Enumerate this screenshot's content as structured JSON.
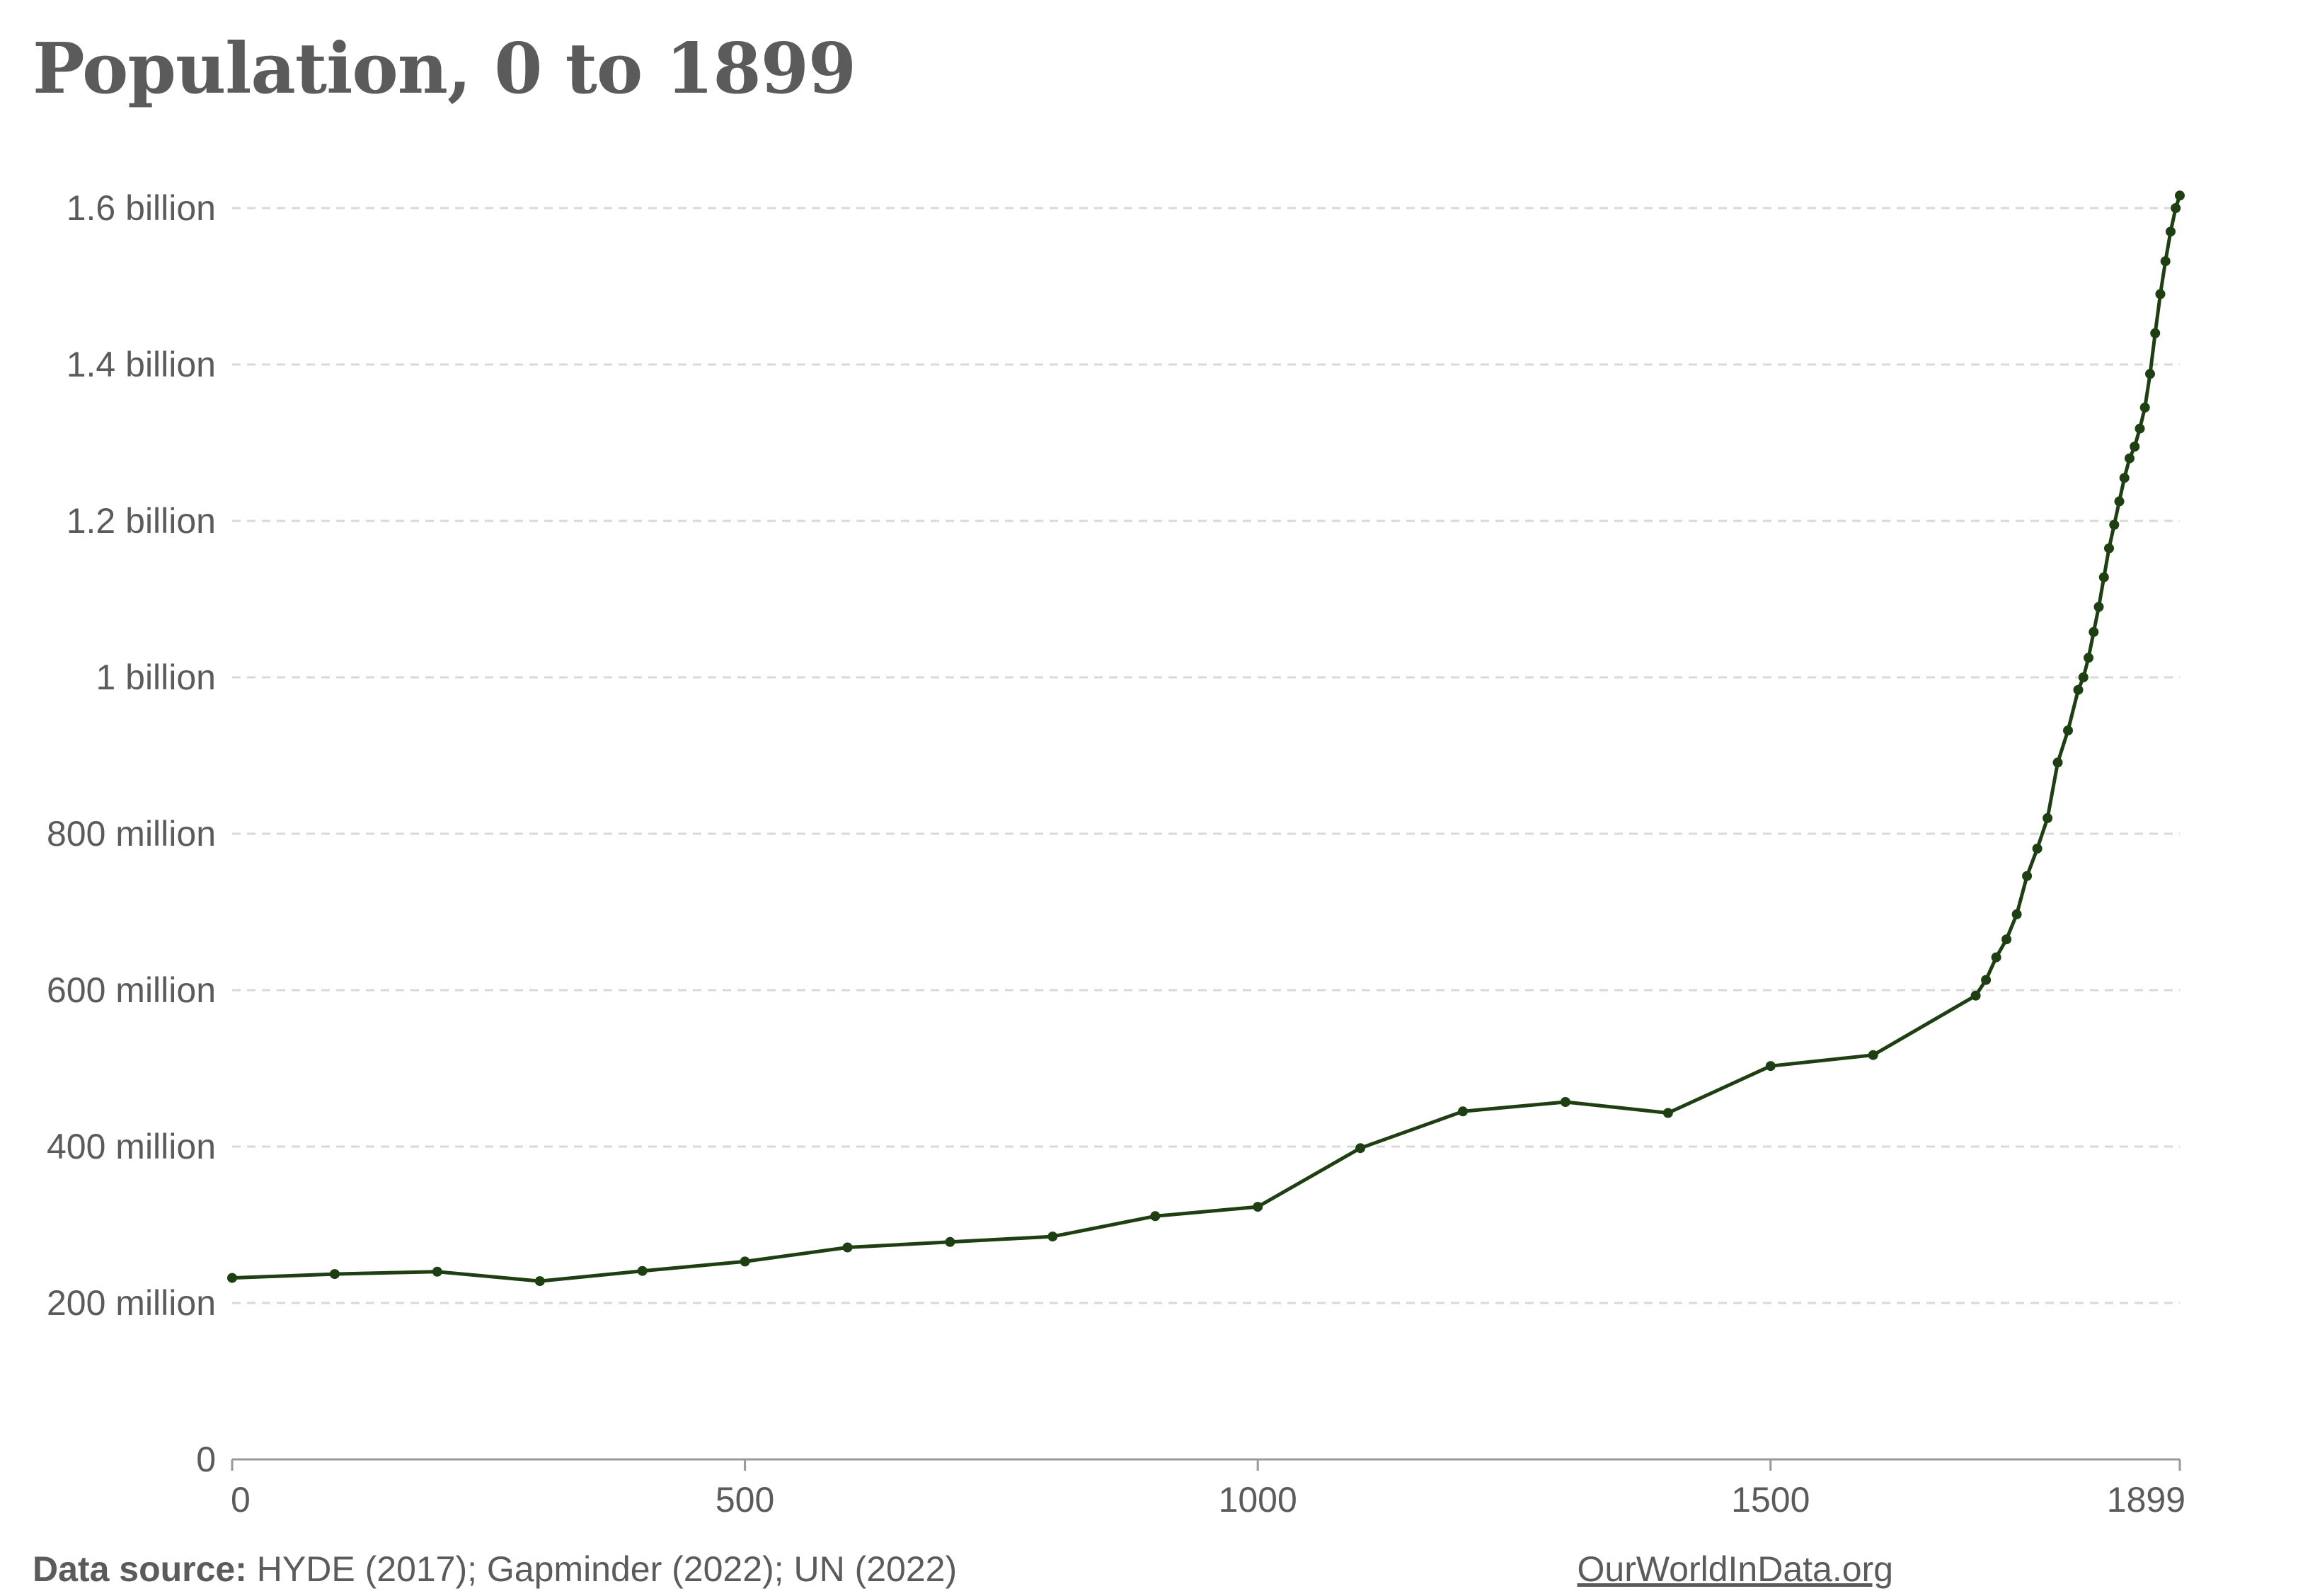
{
  "chart_data": {
    "type": "line",
    "title": "Population, 0 to 1899",
    "xlabel": "",
    "ylabel": "",
    "xlim": [
      0,
      1899
    ],
    "ylim": [
      0,
      1600000000
    ],
    "grid": "horizontal dashed",
    "x_ticks": [
      {
        "value": 0,
        "label": "0"
      },
      {
        "value": 500,
        "label": "500"
      },
      {
        "value": 1000,
        "label": "1000"
      },
      {
        "value": 1500,
        "label": "1500"
      },
      {
        "value": 1899,
        "label": "1899"
      }
    ],
    "y_ticks": [
      {
        "value": 0,
        "label": "0"
      },
      {
        "value": 200000000,
        "label": "200 million"
      },
      {
        "value": 400000000,
        "label": "400 million"
      },
      {
        "value": 600000000,
        "label": "600 million"
      },
      {
        "value": 800000000,
        "label": "800 million"
      },
      {
        "value": 1000000000,
        "label": "1 billion"
      },
      {
        "value": 1200000000,
        "label": "1.2 billion"
      },
      {
        "value": 1400000000,
        "label": "1.4 billion"
      },
      {
        "value": 1600000000,
        "label": "1.6 billion"
      }
    ],
    "series": [
      {
        "color": "#1e3f12",
        "points": [
          [
            0,
            232000000
          ],
          [
            100,
            237000000
          ],
          [
            200,
            240000000
          ],
          [
            300,
            228000000
          ],
          [
            400,
            241000000
          ],
          [
            500,
            253000000
          ],
          [
            600,
            271000000
          ],
          [
            700,
            278000000
          ],
          [
            800,
            285000000
          ],
          [
            900,
            311000000
          ],
          [
            1000,
            323000000
          ],
          [
            1100,
            398000000
          ],
          [
            1200,
            445000000
          ],
          [
            1300,
            457000000
          ],
          [
            1400,
            443000000
          ],
          [
            1500,
            503000000
          ],
          [
            1600,
            517000000
          ],
          [
            1700,
            593000000
          ],
          [
            1710,
            613000000
          ],
          [
            1720,
            642000000
          ],
          [
            1730,
            665000000
          ],
          [
            1740,
            697000000
          ],
          [
            1750,
            746000000
          ],
          [
            1760,
            781000000
          ],
          [
            1770,
            820000000
          ],
          [
            1780,
            891000000
          ],
          [
            1790,
            932000000
          ],
          [
            1800,
            984000000
          ],
          [
            1805,
            1000000000
          ],
          [
            1810,
            1025000000
          ],
          [
            1815,
            1058000000
          ],
          [
            1820,
            1090000000
          ],
          [
            1825,
            1128000000
          ],
          [
            1830,
            1165000000
          ],
          [
            1835,
            1195000000
          ],
          [
            1840,
            1225000000
          ],
          [
            1845,
            1255000000
          ],
          [
            1850,
            1280000000
          ],
          [
            1855,
            1295000000
          ],
          [
            1860,
            1318000000
          ],
          [
            1865,
            1345000000
          ],
          [
            1870,
            1388000000
          ],
          [
            1875,
            1440000000
          ],
          [
            1880,
            1490000000
          ],
          [
            1885,
            1532000000
          ],
          [
            1890,
            1570000000
          ],
          [
            1895,
            1600000000
          ],
          [
            1899,
            1616000000
          ]
        ]
      }
    ]
  },
  "footer": {
    "source_label": "Data source:",
    "source_text": "HYDE (2017); Gapminder (2022); UN (2022)",
    "branding": "OurWorldInData.org"
  }
}
